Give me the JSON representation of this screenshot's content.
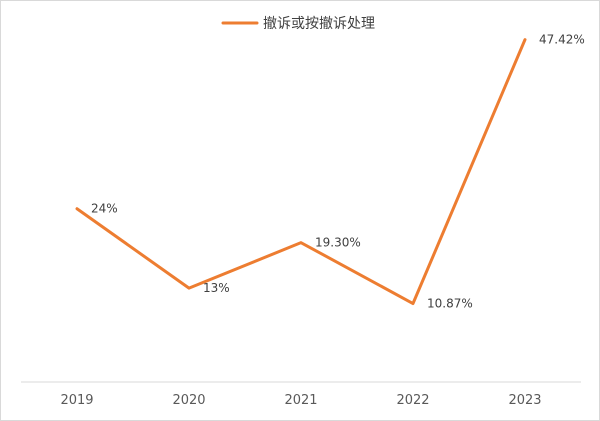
{
  "chart_data": {
    "type": "line",
    "title": "",
    "xlabel": "",
    "ylabel": "",
    "categories": [
      "2019",
      "2020",
      "2021",
      "2022",
      "2023"
    ],
    "series": [
      {
        "name": "撤诉或按撤诉处理",
        "values": [
          24,
          13,
          19.3,
          10.87,
          47.42
        ],
        "labels": [
          "24%",
          "13%",
          "19.30%",
          "10.87%",
          "47.42%"
        ],
        "color": "#ED7D31"
      }
    ],
    "ylim": [
      0,
      50
    ],
    "grid": false,
    "legend": "top-center",
    "axis_color": "#d9d9d9"
  }
}
